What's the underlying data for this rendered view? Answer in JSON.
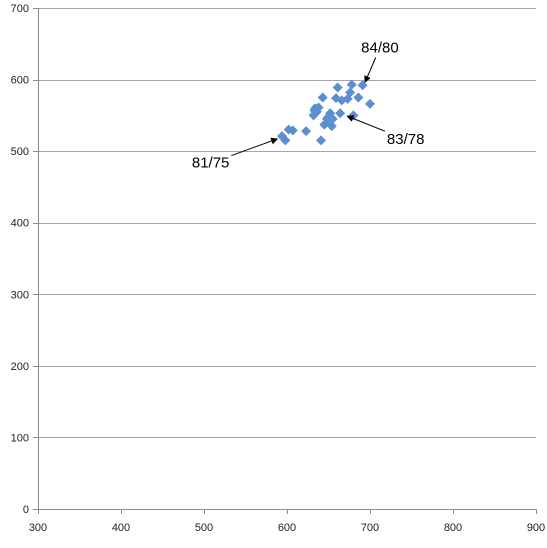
{
  "chart_data": {
    "type": "scatter",
    "title": "",
    "xlabel": "",
    "ylabel": "",
    "xlim": [
      300,
      900
    ],
    "ylim": [
      0,
      700
    ],
    "x_ticks": [
      300,
      400,
      500,
      600,
      700,
      800,
      900
    ],
    "y_ticks": [
      0,
      100,
      200,
      300,
      400,
      500,
      600,
      700
    ],
    "horizontal_grid": true,
    "vertical_grid": false,
    "legend": "none",
    "marker": "diamond",
    "colors": {
      "marker": "#5b8fcf",
      "grid": "#a6a6a6",
      "axis": "#8c8c8c",
      "annotation": "#000000"
    },
    "series": [
      {
        "points": [
          [
            594,
            521
          ],
          [
            598,
            515
          ],
          [
            602,
            530
          ],
          [
            607,
            529
          ],
          [
            623,
            528
          ],
          [
            632,
            550
          ],
          [
            633,
            557
          ],
          [
            634,
            560
          ],
          [
            636,
            555
          ],
          [
            638,
            561
          ],
          [
            641,
            515
          ],
          [
            643,
            575
          ],
          [
            645,
            537
          ],
          [
            648,
            545
          ],
          [
            650,
            548
          ],
          [
            651,
            540
          ],
          [
            652,
            553
          ],
          [
            654,
            535
          ],
          [
            655,
            545
          ],
          [
            659,
            574
          ],
          [
            661,
            589
          ],
          [
            664,
            553
          ],
          [
            666,
            571
          ],
          [
            673,
            573
          ],
          [
            676,
            582
          ],
          [
            678,
            593
          ],
          [
            680,
            550
          ],
          [
            686,
            575
          ],
          [
            691,
            592
          ],
          [
            700,
            566
          ]
        ]
      }
    ],
    "annotations": [
      {
        "text": "84/80",
        "point": [
          692,
          591
        ],
        "label_anchor": [
          712,
          645
        ]
      },
      {
        "text": "83/78",
        "point": [
          668,
          551
        ],
        "label_anchor": [
          743,
          517
        ]
      },
      {
        "text": "81/75",
        "point": [
          593,
          519
        ],
        "label_anchor": [
          508,
          484
        ]
      }
    ]
  }
}
